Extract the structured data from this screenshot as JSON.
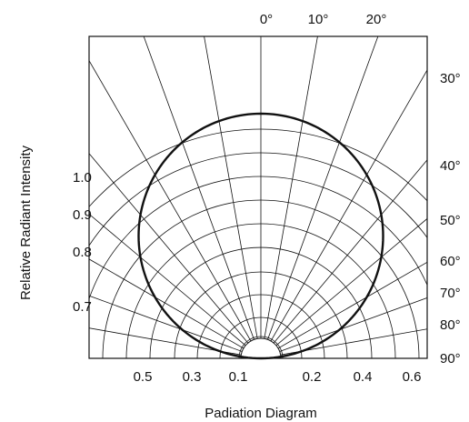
{
  "chart_data": {
    "type": "polar",
    "title": "",
    "caption": "Padiation Diagram",
    "ylabel": "Relative Radiant Intensity",
    "angle_ticks_top": [
      "0°",
      "10°",
      "20°"
    ],
    "angle_ticks_right": [
      "30°",
      "40°",
      "50°",
      "60°",
      "70°",
      "80°",
      "90°"
    ],
    "radial_ticks_left": [
      "1.0",
      "0.9",
      "0.8",
      "0.7"
    ],
    "x_ticks": [
      "0.5",
      "0.3",
      "0.1",
      "0.2",
      "0.4",
      "0.6"
    ],
    "angles_deg": [
      0,
      10,
      20,
      30,
      40,
      50,
      60,
      70,
      80,
      90
    ],
    "relative_intensity": [
      1.0,
      0.985,
      0.94,
      0.866,
      0.766,
      0.643,
      0.5,
      0.342,
      0.174,
      0.0
    ],
    "grid": true
  }
}
